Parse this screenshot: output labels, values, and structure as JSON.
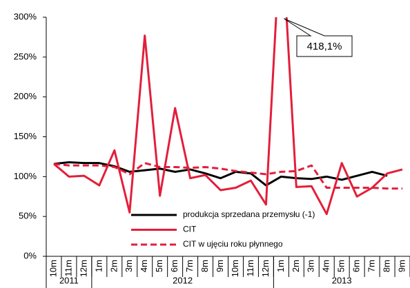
{
  "chart_data": {
    "type": "line",
    "categories": [
      "10m",
      "11m",
      "12m",
      "1m",
      "2m",
      "3m",
      "4m",
      "5m",
      "6m",
      "7m",
      "8m",
      "9m",
      "10m",
      "11m",
      "12m",
      "1m",
      "2m",
      "3m",
      "4m",
      "5m",
      "6m",
      "7m",
      "8m",
      "9m"
    ],
    "groups": [
      "2011",
      "2012",
      "2013"
    ],
    "ylim": [
      0,
      300
    ],
    "yticks": [
      {
        "value": 0,
        "label": "0%"
      },
      {
        "value": 50,
        "label": "50%"
      },
      {
        "value": 100,
        "label": "100%"
      },
      {
        "value": 150,
        "label": "150%"
      },
      {
        "value": 200,
        "label": "200%"
      },
      {
        "value": 250,
        "label": "250%"
      },
      {
        "value": 300,
        "label": "300%"
      }
    ],
    "grid": false,
    "series": [
      {
        "name": "produkcja sprzedana przemysłu (-1)",
        "color": "#000000",
        "dash": false,
        "values": [
          116,
          118,
          117,
          117,
          113,
          106,
          108,
          110,
          106,
          109,
          104,
          98,
          106,
          104,
          89,
          100,
          98,
          97,
          100,
          96,
          101,
          106,
          101,
          null
        ]
      },
      {
        "name": "CIT",
        "color": "#e31e3a",
        "dash": false,
        "values": [
          116,
          100,
          101,
          89,
          133,
          55,
          277,
          76,
          186,
          98,
          102,
          83,
          86,
          95,
          65,
          418.1,
          87,
          88,
          53,
          117,
          75,
          86,
          104,
          109
        ],
        "value_labels": [
          null,
          null,
          null,
          null,
          null,
          null,
          null,
          null,
          null,
          null,
          null,
          null,
          null,
          null,
          null,
          "418,1%",
          null,
          null,
          null,
          null,
          null,
          null,
          null,
          null
        ]
      },
      {
        "name": "CIT w ujęciu roku płynnego",
        "color": "#e31e3a",
        "dash": true,
        "values": [
          116,
          114,
          114,
          114,
          112,
          103,
          117,
          112,
          112,
          111,
          112,
          110,
          107,
          105,
          103,
          106,
          107,
          114,
          86,
          86,
          86,
          86,
          85,
          85
        ]
      }
    ]
  }
}
